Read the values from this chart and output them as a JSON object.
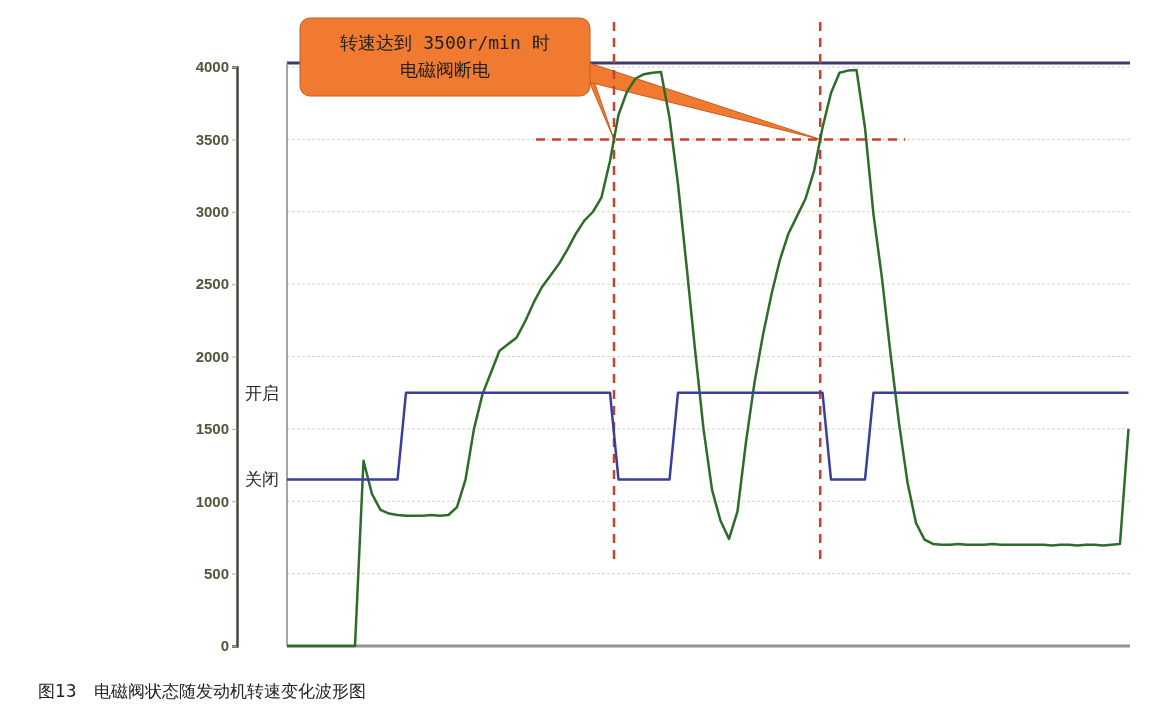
{
  "chart_data": {
    "type": "line",
    "categories": [
      null,
      null,
      null,
      null,
      null,
      null,
      null,
      null,
      null,
      null,
      null,
      null,
      null,
      null,
      null,
      null,
      null,
      null,
      null,
      null,
      null,
      null,
      null,
      null,
      null,
      null,
      null,
      null,
      null,
      null,
      null,
      null,
      null,
      null,
      null,
      null,
      null,
      null,
      null,
      null,
      null,
      null,
      null,
      null,
      null,
      null,
      null,
      null,
      null,
      null,
      null,
      null,
      null,
      null,
      null,
      null,
      null,
      null,
      null,
      null,
      null,
      null,
      null,
      null,
      null,
      null,
      null,
      null,
      null,
      null,
      null,
      null,
      null,
      null,
      null,
      null,
      null,
      null,
      null,
      null,
      null,
      null,
      null,
      null,
      null,
      null,
      null,
      null,
      null,
      null,
      null,
      null,
      null,
      null,
      null,
      null,
      null,
      null,
      null,
      null
    ],
    "series": [
      {
        "type": "line",
        "color": "#2f6b2a",
        "values": [
          0,
          0,
          0,
          0,
          0,
          0,
          0,
          0,
          0,
          1280,
          1050,
          940,
          915,
          905,
          900,
          900,
          900,
          905,
          900,
          905,
          960,
          1150,
          1500,
          1740,
          1890,
          2040,
          2085,
          2130,
          2240,
          2370,
          2480,
          2560,
          2640,
          2740,
          2850,
          2940,
          3000,
          3100,
          3350,
          3670,
          3830,
          3920,
          3950,
          3960,
          3965,
          3650,
          3190,
          2630,
          2050,
          1500,
          1080,
          865,
          740,
          930,
          1410,
          1820,
          2150,
          2430,
          2670,
          2850,
          2970,
          3090,
          3280,
          3580,
          3820,
          3960,
          3975,
          3980,
          3580,
          2980,
          2540,
          2020,
          1540,
          1130,
          850,
          735,
          705,
          700,
          700,
          705,
          700,
          700,
          700,
          705,
          700,
          700,
          700,
          700,
          700,
          700,
          695,
          700,
          700,
          695,
          700,
          700,
          695,
          700,
          705,
          1500
        ]
      },
      {
        "type": "line",
        "color": "#3b3f9c",
        "values": [
          1150,
          1150,
          1150,
          1150,
          1150,
          1150,
          1150,
          1150,
          1150,
          1150,
          1150,
          1150,
          1150,
          1150,
          1750,
          1750,
          1750,
          1750,
          1750,
          1750,
          1750,
          1750,
          1750,
          1750,
          1750,
          1750,
          1750,
          1750,
          1750,
          1750,
          1750,
          1750,
          1750,
          1750,
          1750,
          1750,
          1750,
          1750,
          1750,
          1150,
          1150,
          1150,
          1150,
          1150,
          1150,
          1150,
          1750,
          1750,
          1750,
          1750,
          1750,
          1750,
          1750,
          1750,
          1750,
          1750,
          1750,
          1750,
          1750,
          1750,
          1750,
          1750,
          1750,
          1750,
          1150,
          1150,
          1150,
          1150,
          1150,
          1750,
          1750,
          1750,
          1750,
          1750,
          1750,
          1750,
          1750,
          1750,
          1750,
          1750,
          1750,
          1750,
          1750,
          1750,
          1750,
          1750,
          1750,
          1750,
          1750,
          1750,
          1750,
          1750,
          1750,
          1750,
          1750,
          1750,
          1750,
          1750,
          1750,
          1750
        ]
      }
    ],
    "ylim": [
      0,
      4000
    ],
    "yticks": [
      0,
      500,
      1000,
      1500,
      2000,
      2500,
      3000,
      3500,
      4000
    ],
    "grid": "y",
    "ref_lines": [
      {
        "axis": "y",
        "value": 3500,
        "color": "#c8402e",
        "line_style": "dashed"
      }
    ],
    "annotations": [
      "转速达到 3500r/min 时电磁阀断电",
      "开启",
      "关闭",
      "图13　电磁阀状态随发动机转速变化波形图"
    ]
  }
}
